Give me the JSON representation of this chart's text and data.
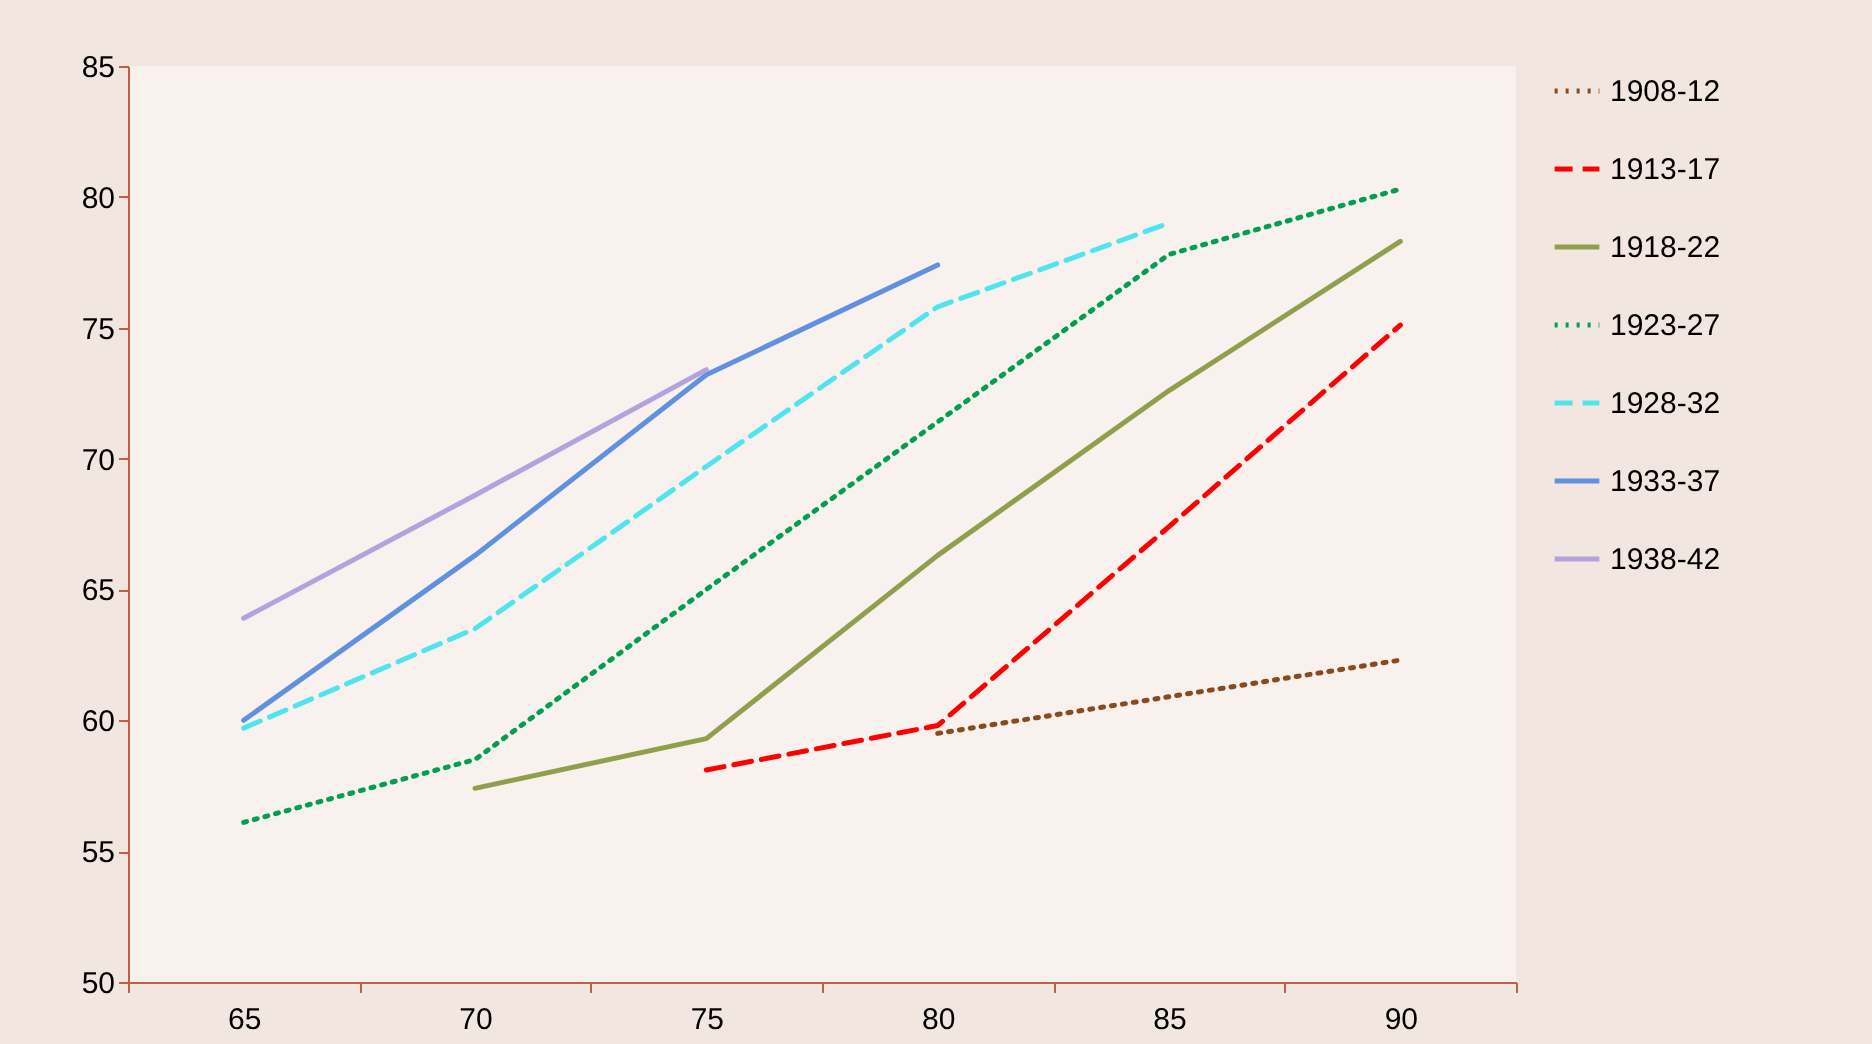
{
  "chart_data": {
    "type": "line",
    "categories": [
      "65",
      "70",
      "75",
      "80",
      "85",
      "90"
    ],
    "series": [
      {
        "name": "1908-12",
        "color": "#8a4a1c",
        "line_style": "dotted",
        "values": [
          null,
          null,
          null,
          59.5,
          60.9,
          62.3
        ]
      },
      {
        "name": "1913-17",
        "color": "#ff0000",
        "line_style": "dashed",
        "values": [
          null,
          null,
          58.1,
          59.8,
          67.4,
          75.1
        ]
      },
      {
        "name": "1918-22",
        "color": "#8f9f4c",
        "line_style": "solid",
        "values": [
          null,
          57.4,
          59.3,
          66.3,
          72.6,
          78.3
        ]
      },
      {
        "name": "1923-27",
        "color": "#00a050",
        "line_style": "dotted",
        "values": [
          56.1,
          58.5,
          65.0,
          71.4,
          77.8,
          80.3
        ]
      },
      {
        "name": "1928-32",
        "color": "#50e4ee",
        "line_style": "dashed",
        "values": [
          59.7,
          63.5,
          69.7,
          75.8,
          79.0,
          null
        ]
      },
      {
        "name": "1933-37",
        "color": "#6090e0",
        "line_style": "solid",
        "values": [
          60.0,
          66.3,
          73.2,
          77.4,
          null,
          null
        ]
      },
      {
        "name": "1938-42",
        "color": "#b3a2dd",
        "line_style": "solid",
        "values": [
          63.9,
          68.6,
          73.4,
          null,
          null,
          null
        ]
      }
    ],
    "ylim": [
      50,
      85
    ],
    "yticks": [
      50,
      55,
      60,
      65,
      70,
      75,
      80,
      85
    ],
    "grid": false,
    "legend": "right"
  }
}
